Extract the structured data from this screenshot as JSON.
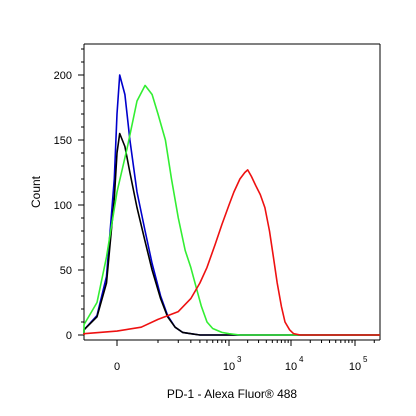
{
  "chart_data": {
    "type": "line",
    "xlabel": "PD-1 - Alexa Fluor® 488",
    "ylabel": "Count",
    "x_scale": "biexponential",
    "xlim": [
      -300,
      300000
    ],
    "ylim": [
      0,
      225
    ],
    "grid": false,
    "legend": "none",
    "y_ticks": [
      0,
      50,
      100,
      150,
      200
    ],
    "x_ticks": [
      {
        "value": 0,
        "base": "0",
        "exp": ""
      },
      {
        "value": 1000,
        "base": "10",
        "exp": "3"
      },
      {
        "value": 10000,
        "base": "10",
        "exp": "4"
      },
      {
        "value": 100000,
        "base": "10",
        "exp": "5"
      }
    ],
    "series": [
      {
        "color": "#0000cc",
        "points": [
          [
            -300,
            0
          ],
          [
            -150,
            1
          ],
          [
            -80,
            4
          ],
          [
            -40,
            15
          ],
          [
            -20,
            45
          ],
          [
            -5,
            120
          ],
          [
            0,
            170
          ],
          [
            5,
            200
          ],
          [
            15,
            185
          ],
          [
            25,
            150
          ],
          [
            40,
            110
          ],
          [
            60,
            80
          ],
          [
            80,
            55
          ],
          [
            110,
            30
          ],
          [
            140,
            15
          ],
          [
            180,
            6
          ],
          [
            230,
            2
          ],
          [
            300,
            1
          ],
          [
            400,
            0
          ],
          [
            300000,
            0
          ]
        ]
      },
      {
        "color": "#000000",
        "points": [
          [
            -300,
            0
          ],
          [
            -150,
            1
          ],
          [
            -80,
            4
          ],
          [
            -40,
            14
          ],
          [
            -20,
            40
          ],
          [
            -5,
            105
          ],
          [
            0,
            140
          ],
          [
            5,
            155
          ],
          [
            15,
            145
          ],
          [
            25,
            125
          ],
          [
            40,
            98
          ],
          [
            60,
            72
          ],
          [
            80,
            50
          ],
          [
            110,
            28
          ],
          [
            140,
            14
          ],
          [
            180,
            6
          ],
          [
            230,
            2
          ],
          [
            300,
            1
          ],
          [
            400,
            0
          ],
          [
            300000,
            0
          ]
        ]
      },
      {
        "color": "#33ee33",
        "points": [
          [
            -300,
            0
          ],
          [
            -150,
            2
          ],
          [
            -80,
            8
          ],
          [
            -40,
            25
          ],
          [
            -20,
            60
          ],
          [
            0,
            110
          ],
          [
            20,
            145
          ],
          [
            40,
            180
          ],
          [
            60,
            192
          ],
          [
            80,
            185
          ],
          [
            100,
            170
          ],
          [
            130,
            150
          ],
          [
            160,
            120
          ],
          [
            200,
            90
          ],
          [
            250,
            65
          ],
          [
            300,
            52
          ],
          [
            350,
            38
          ],
          [
            420,
            22
          ],
          [
            500,
            10
          ],
          [
            600,
            5
          ],
          [
            800,
            2
          ],
          [
            1000,
            1
          ],
          [
            1500,
            0
          ],
          [
            300000,
            0
          ]
        ]
      },
      {
        "color": "#ee1111",
        "points": [
          [
            -300,
            0
          ],
          [
            -100,
            1
          ],
          [
            0,
            3
          ],
          [
            50,
            6
          ],
          [
            100,
            12
          ],
          [
            200,
            18
          ],
          [
            300,
            28
          ],
          [
            400,
            40
          ],
          [
            500,
            52
          ],
          [
            650,
            70
          ],
          [
            800,
            85
          ],
          [
            1000,
            100
          ],
          [
            1200,
            110
          ],
          [
            1500,
            120
          ],
          [
            1800,
            125
          ],
          [
            2000,
            127
          ],
          [
            2300,
            122
          ],
          [
            2700,
            115
          ],
          [
            3200,
            108
          ],
          [
            3800,
            98
          ],
          [
            4500,
            80
          ],
          [
            5200,
            60
          ],
          [
            6000,
            40
          ],
          [
            7000,
            22
          ],
          [
            8000,
            10
          ],
          [
            9500,
            4
          ],
          [
            11000,
            1
          ],
          [
            14000,
            0
          ],
          [
            300000,
            0
          ]
        ]
      }
    ]
  }
}
